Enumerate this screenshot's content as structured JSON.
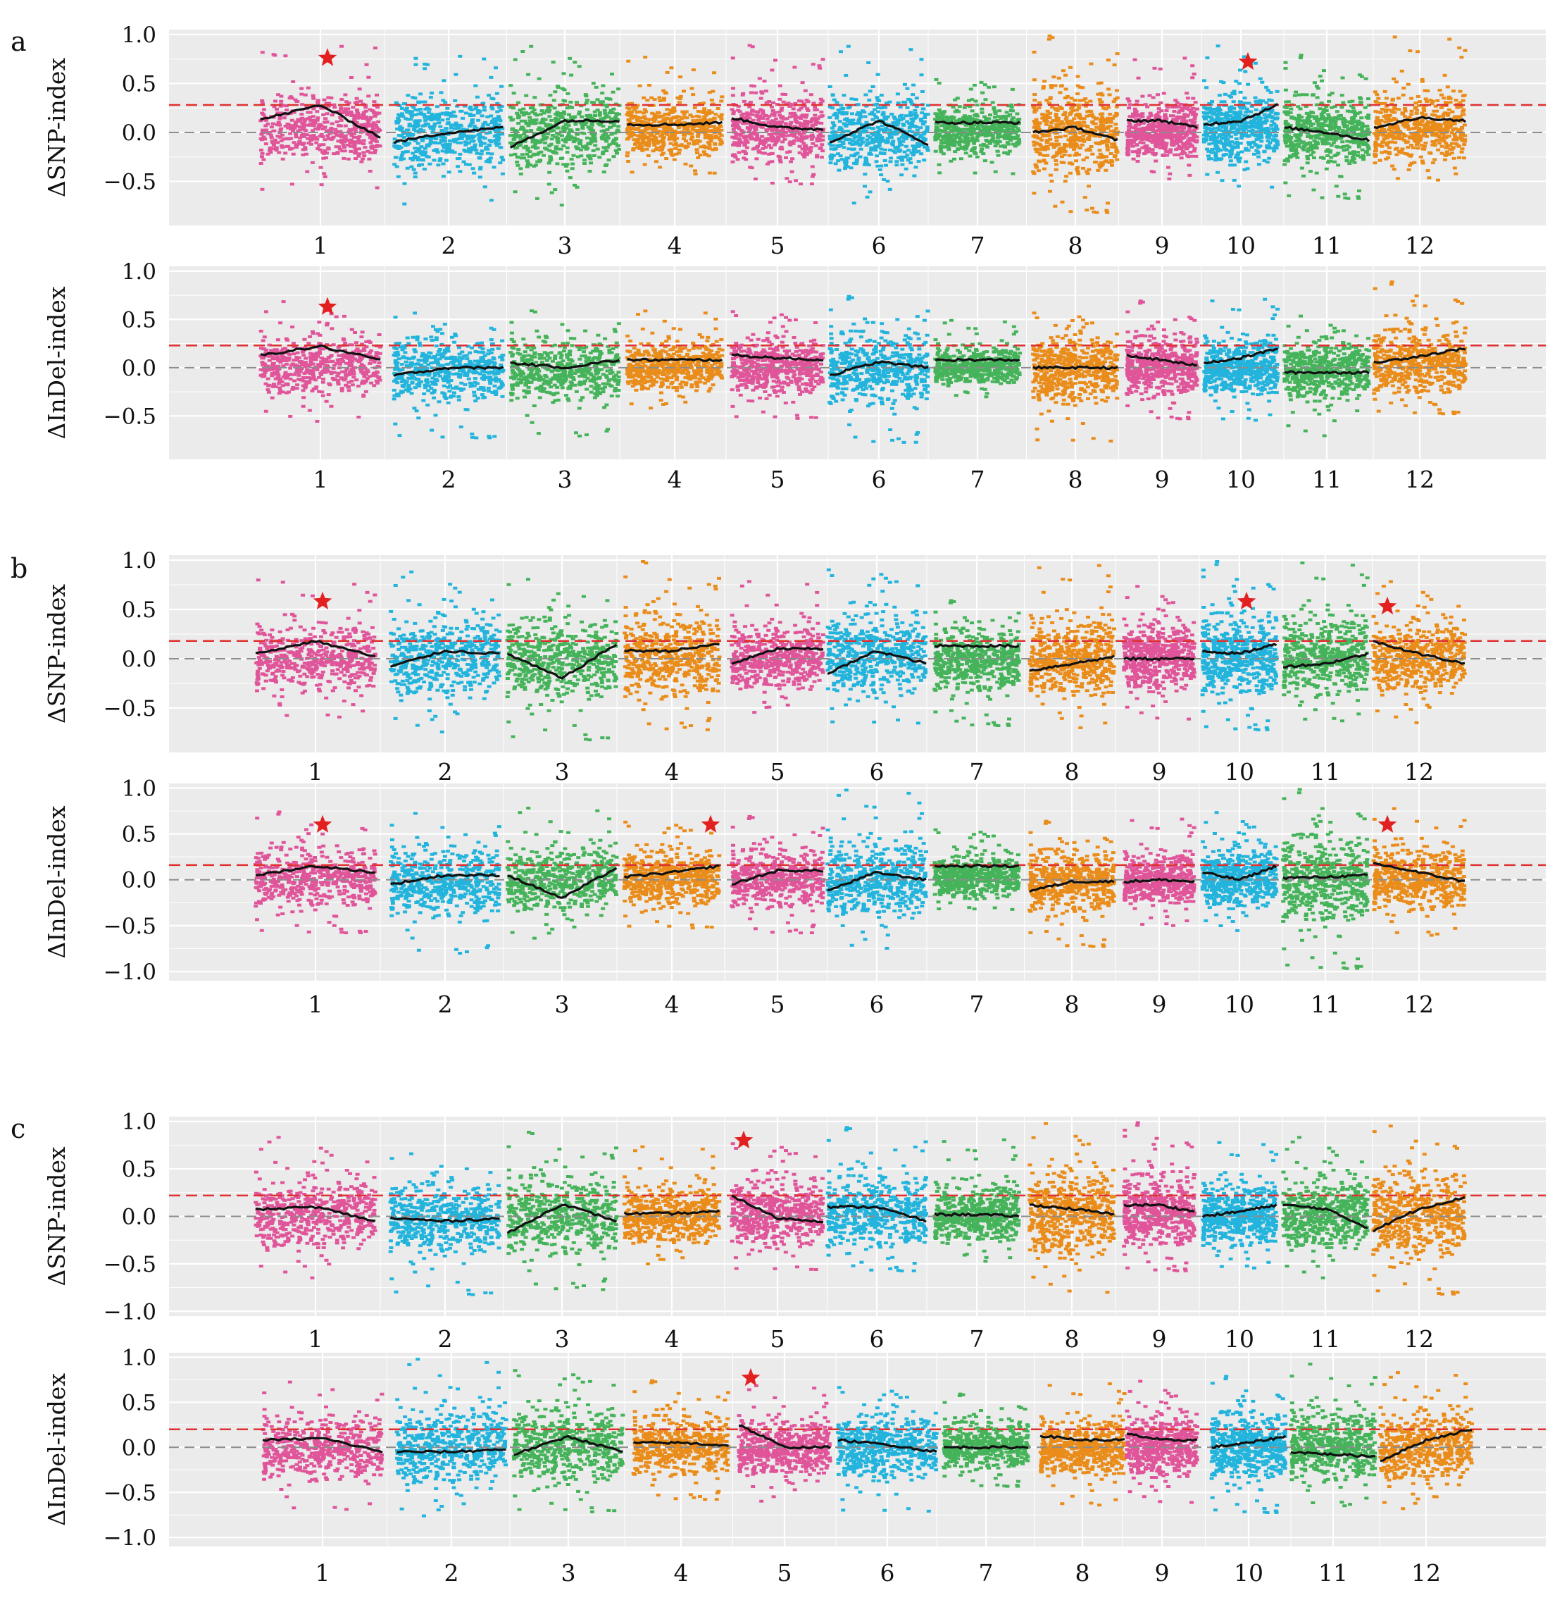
{
  "figure": {
    "colors": {
      "pink": "#e0559a",
      "blue": "#22b4dc",
      "green": "#45b35a",
      "orange": "#ea8c1a",
      "background": "#ebebeb",
      "grid": "#ffffff",
      "threshold": "#e03030",
      "zero": "#8c8c8c",
      "fit": "#111111",
      "star": "#e32020"
    },
    "chromosome_color_names": [
      "pink",
      "blue",
      "green",
      "orange",
      "pink",
      "blue",
      "green",
      "orange",
      "pink",
      "blue",
      "green",
      "orange"
    ]
  },
  "chart_data": [
    {
      "type": "scatter",
      "panel": "a",
      "ylabel": "ΔSNP-index",
      "ylim": [
        -0.95,
        1.05
      ],
      "yticks": [
        1.0,
        0.5,
        0.0,
        -0.5
      ],
      "ytick_labels": [
        "1.0",
        "0.5",
        "0.0",
        "−0.5"
      ],
      "threshold": 0.28,
      "categories": [
        "1",
        "2",
        "3",
        "4",
        "5",
        "6",
        "7",
        "8",
        "9",
        "10",
        "11",
        "12"
      ],
      "spread_low": [
        -0.6,
        -0.8,
        -0.8,
        -0.45,
        -0.55,
        -0.85,
        -0.45,
        -0.85,
        -0.55,
        -0.6,
        -0.7,
        -0.55
      ],
      "spread_high": [
        0.9,
        0.8,
        0.9,
        0.8,
        0.9,
        0.9,
        0.6,
        1.0,
        0.8,
        0.9,
        0.8,
        1.0
      ],
      "fit_start": [
        0.13,
        -0.1,
        -0.15,
        0.08,
        0.15,
        -0.1,
        0.1,
        0.0,
        0.12,
        0.08,
        0.05,
        0.05
      ],
      "fit_mid": [
        0.28,
        0.0,
        0.12,
        0.08,
        0.05,
        0.12,
        0.1,
        0.05,
        0.12,
        0.12,
        0.0,
        0.15
      ],
      "fit_end": [
        -0.05,
        0.05,
        0.12,
        0.1,
        0.03,
        -0.12,
        0.1,
        -0.08,
        0.05,
        0.28,
        -0.08,
        0.12
      ],
      "peaks": [
        {
          "chr": "1",
          "y": 0.76
        },
        {
          "chr": "10",
          "y": 0.72
        }
      ]
    },
    {
      "type": "scatter",
      "panel": "a",
      "ylabel": "ΔInDel-index",
      "ylim": [
        -0.95,
        1.05
      ],
      "yticks": [
        1.0,
        0.5,
        0.0,
        -0.5
      ],
      "ytick_labels": [
        "1.0",
        "0.5",
        "0.0",
        "−0.5"
      ],
      "threshold": 0.23,
      "categories": [
        "1",
        "2",
        "3",
        "4",
        "5",
        "6",
        "7",
        "8",
        "9",
        "10",
        "11",
        "12"
      ],
      "spread_low": [
        -0.6,
        -0.75,
        -0.75,
        -0.5,
        -0.55,
        -0.8,
        -0.35,
        -0.8,
        -0.55,
        -0.6,
        -0.75,
        -0.5
      ],
      "spread_high": [
        0.7,
        0.6,
        0.6,
        0.6,
        0.65,
        0.75,
        0.5,
        0.65,
        0.7,
        0.75,
        0.55,
        0.9
      ],
      "fit_start": [
        0.13,
        -0.08,
        0.05,
        0.08,
        0.13,
        -0.08,
        0.08,
        0.0,
        0.12,
        0.05,
        -0.05,
        0.05
      ],
      "fit_mid": [
        0.22,
        0.0,
        0.0,
        0.08,
        0.1,
        0.06,
        0.08,
        0.0,
        0.08,
        0.1,
        -0.05,
        0.12
      ],
      "fit_end": [
        0.08,
        0.0,
        0.08,
        0.08,
        0.08,
        0.0,
        0.08,
        0.0,
        0.02,
        0.2,
        -0.05,
        0.2
      ],
      "peaks": [
        {
          "chr": "1",
          "y": 0.63
        }
      ]
    },
    {
      "type": "scatter",
      "panel": "b",
      "ylabel": "ΔSNP-index",
      "ylim": [
        -0.95,
        1.05
      ],
      "yticks": [
        1.0,
        0.5,
        0.0,
        -0.5
      ],
      "ytick_labels": [
        "1.0",
        "0.5",
        "0.0",
        "−0.5"
      ],
      "threshold": 0.18,
      "categories": [
        "1",
        "2",
        "3",
        "4",
        "5",
        "6",
        "7",
        "8",
        "9",
        "10",
        "11",
        "12"
      ],
      "spread_low": [
        -0.65,
        -0.8,
        -0.85,
        -0.75,
        -0.65,
        -0.7,
        -0.7,
        -0.8,
        -0.65,
        -0.75,
        -0.7,
        -0.7
      ],
      "spread_high": [
        0.8,
        0.9,
        0.85,
        1.0,
        0.8,
        1.0,
        0.6,
        1.0,
        0.75,
        1.0,
        1.0,
        0.8
      ],
      "fit_start": [
        0.05,
        -0.08,
        0.05,
        0.08,
        -0.05,
        -0.15,
        0.13,
        -0.12,
        0.0,
        0.08,
        -0.08,
        0.18
      ],
      "fit_mid": [
        0.18,
        0.08,
        -0.2,
        0.08,
        0.1,
        0.08,
        0.13,
        -0.05,
        0.0,
        0.05,
        -0.05,
        0.05
      ],
      "fit_end": [
        0.02,
        0.05,
        0.15,
        0.15,
        0.1,
        -0.05,
        0.13,
        0.02,
        0.0,
        0.15,
        0.05,
        -0.05
      ],
      "peaks": [
        {
          "chr": "1",
          "y": 0.58
        },
        {
          "chr": "10",
          "y": 0.58
        },
        {
          "chr": "12",
          "y": 0.53
        }
      ]
    },
    {
      "type": "scatter",
      "panel": "b",
      "ylabel": "ΔInDel-index",
      "ylim": [
        -1.1,
        1.05
      ],
      "yticks": [
        1.0,
        0.5,
        0.0,
        -0.5,
        -1.0
      ],
      "ytick_labels": [
        "1.0",
        "0.5",
        "0.0",
        "−0.5",
        "−1.0"
      ],
      "threshold": 0.16,
      "categories": [
        "1",
        "2",
        "3",
        "4",
        "5",
        "6",
        "7",
        "8",
        "9",
        "10",
        "11",
        "12"
      ],
      "spread_low": [
        -0.6,
        -0.85,
        -0.75,
        -0.55,
        -0.6,
        -0.85,
        -0.35,
        -0.75,
        -0.55,
        -0.6,
        -1.0,
        -0.65
      ],
      "spread_high": [
        0.75,
        0.75,
        0.8,
        0.7,
        0.7,
        1.0,
        0.6,
        0.65,
        0.7,
        0.75,
        1.0,
        0.8
      ],
      "fit_start": [
        0.05,
        -0.05,
        0.05,
        0.03,
        -0.05,
        -0.12,
        0.15,
        -0.12,
        -0.02,
        0.08,
        0.02,
        0.18
      ],
      "fit_mid": [
        0.15,
        0.05,
        -0.2,
        0.08,
        0.1,
        0.08,
        0.15,
        -0.02,
        0.0,
        0.0,
        0.03,
        0.08
      ],
      "fit_end": [
        0.08,
        0.05,
        0.13,
        0.15,
        0.1,
        0.0,
        0.15,
        -0.02,
        -0.02,
        0.15,
        0.05,
        -0.02
      ],
      "peaks": [
        {
          "chr": "1",
          "y": 0.6
        },
        {
          "chr": "4",
          "y": 0.6
        },
        {
          "chr": "12",
          "y": 0.6
        }
      ]
    },
    {
      "type": "scatter",
      "panel": "c",
      "ylabel": "ΔSNP-index",
      "ylim": [
        -1.05,
        1.05
      ],
      "yticks": [
        1.0,
        0.5,
        0.0,
        -0.5,
        -1.0
      ],
      "ytick_labels": [
        "1.0",
        "0.5",
        "0.0",
        "−0.5",
        "−1.0"
      ],
      "threshold": 0.22,
      "categories": [
        "1",
        "2",
        "3",
        "4",
        "5",
        "6",
        "7",
        "8",
        "9",
        "10",
        "11",
        "12"
      ],
      "spread_low": [
        -0.7,
        -0.85,
        -0.8,
        -0.6,
        -0.6,
        -0.6,
        -0.55,
        -0.85,
        -0.6,
        -0.6,
        -0.7,
        -0.85
      ],
      "spread_high": [
        0.85,
        0.7,
        0.9,
        0.75,
        0.85,
        0.95,
        0.85,
        1.0,
        1.0,
        0.8,
        0.85,
        1.0
      ],
      "fit_start": [
        0.07,
        -0.02,
        -0.18,
        0.03,
        0.22,
        0.1,
        0.02,
        0.12,
        0.12,
        0.0,
        0.12,
        -0.15
      ],
      "fit_mid": [
        0.1,
        -0.05,
        0.13,
        0.03,
        -0.02,
        0.1,
        0.02,
        0.08,
        0.12,
        0.05,
        0.08,
        0.08
      ],
      "fit_end": [
        -0.05,
        -0.02,
        -0.05,
        0.05,
        -0.05,
        -0.05,
        0.0,
        0.02,
        0.05,
        0.12,
        -0.12,
        0.2
      ],
      "peaks": [
        {
          "chr": "5",
          "y": 0.8
        }
      ]
    },
    {
      "type": "scatter",
      "panel": "c",
      "ylabel": "ΔInDel-index",
      "ylim": [
        -1.1,
        1.05
      ],
      "yticks": [
        1.0,
        0.5,
        0.0,
        -0.5,
        -1.0
      ],
      "ytick_labels": [
        "1.0",
        "0.5",
        "0.0",
        "−0.5",
        "−1.0"
      ],
      "threshold": 0.2,
      "categories": [
        "1",
        "2",
        "3",
        "4",
        "5",
        "6",
        "7",
        "8",
        "9",
        "10",
        "11",
        "12"
      ],
      "spread_low": [
        -0.75,
        -0.9,
        -0.75,
        -0.6,
        -0.7,
        -0.75,
        -0.45,
        -0.7,
        -0.65,
        -0.75,
        -0.7,
        -0.8
      ],
      "spread_high": [
        0.75,
        1.0,
        0.95,
        0.75,
        0.7,
        0.75,
        0.6,
        0.75,
        0.75,
        0.8,
        0.95,
        0.85
      ],
      "fit_start": [
        0.08,
        -0.05,
        -0.08,
        0.05,
        0.25,
        0.08,
        0.0,
        0.13,
        0.15,
        0.0,
        -0.05,
        -0.15
      ],
      "fit_mid": [
        0.1,
        -0.05,
        0.12,
        0.05,
        0.0,
        0.03,
        0.0,
        0.08,
        0.08,
        0.05,
        -0.08,
        0.08
      ],
      "fit_end": [
        -0.05,
        -0.02,
        -0.05,
        0.02,
        0.0,
        -0.05,
        0.0,
        0.08,
        0.08,
        0.12,
        -0.1,
        0.2
      ],
      "peaks": [
        {
          "chr": "5",
          "y": 0.77
        }
      ]
    }
  ],
  "panel_letters": [
    "a",
    "b",
    "c"
  ]
}
